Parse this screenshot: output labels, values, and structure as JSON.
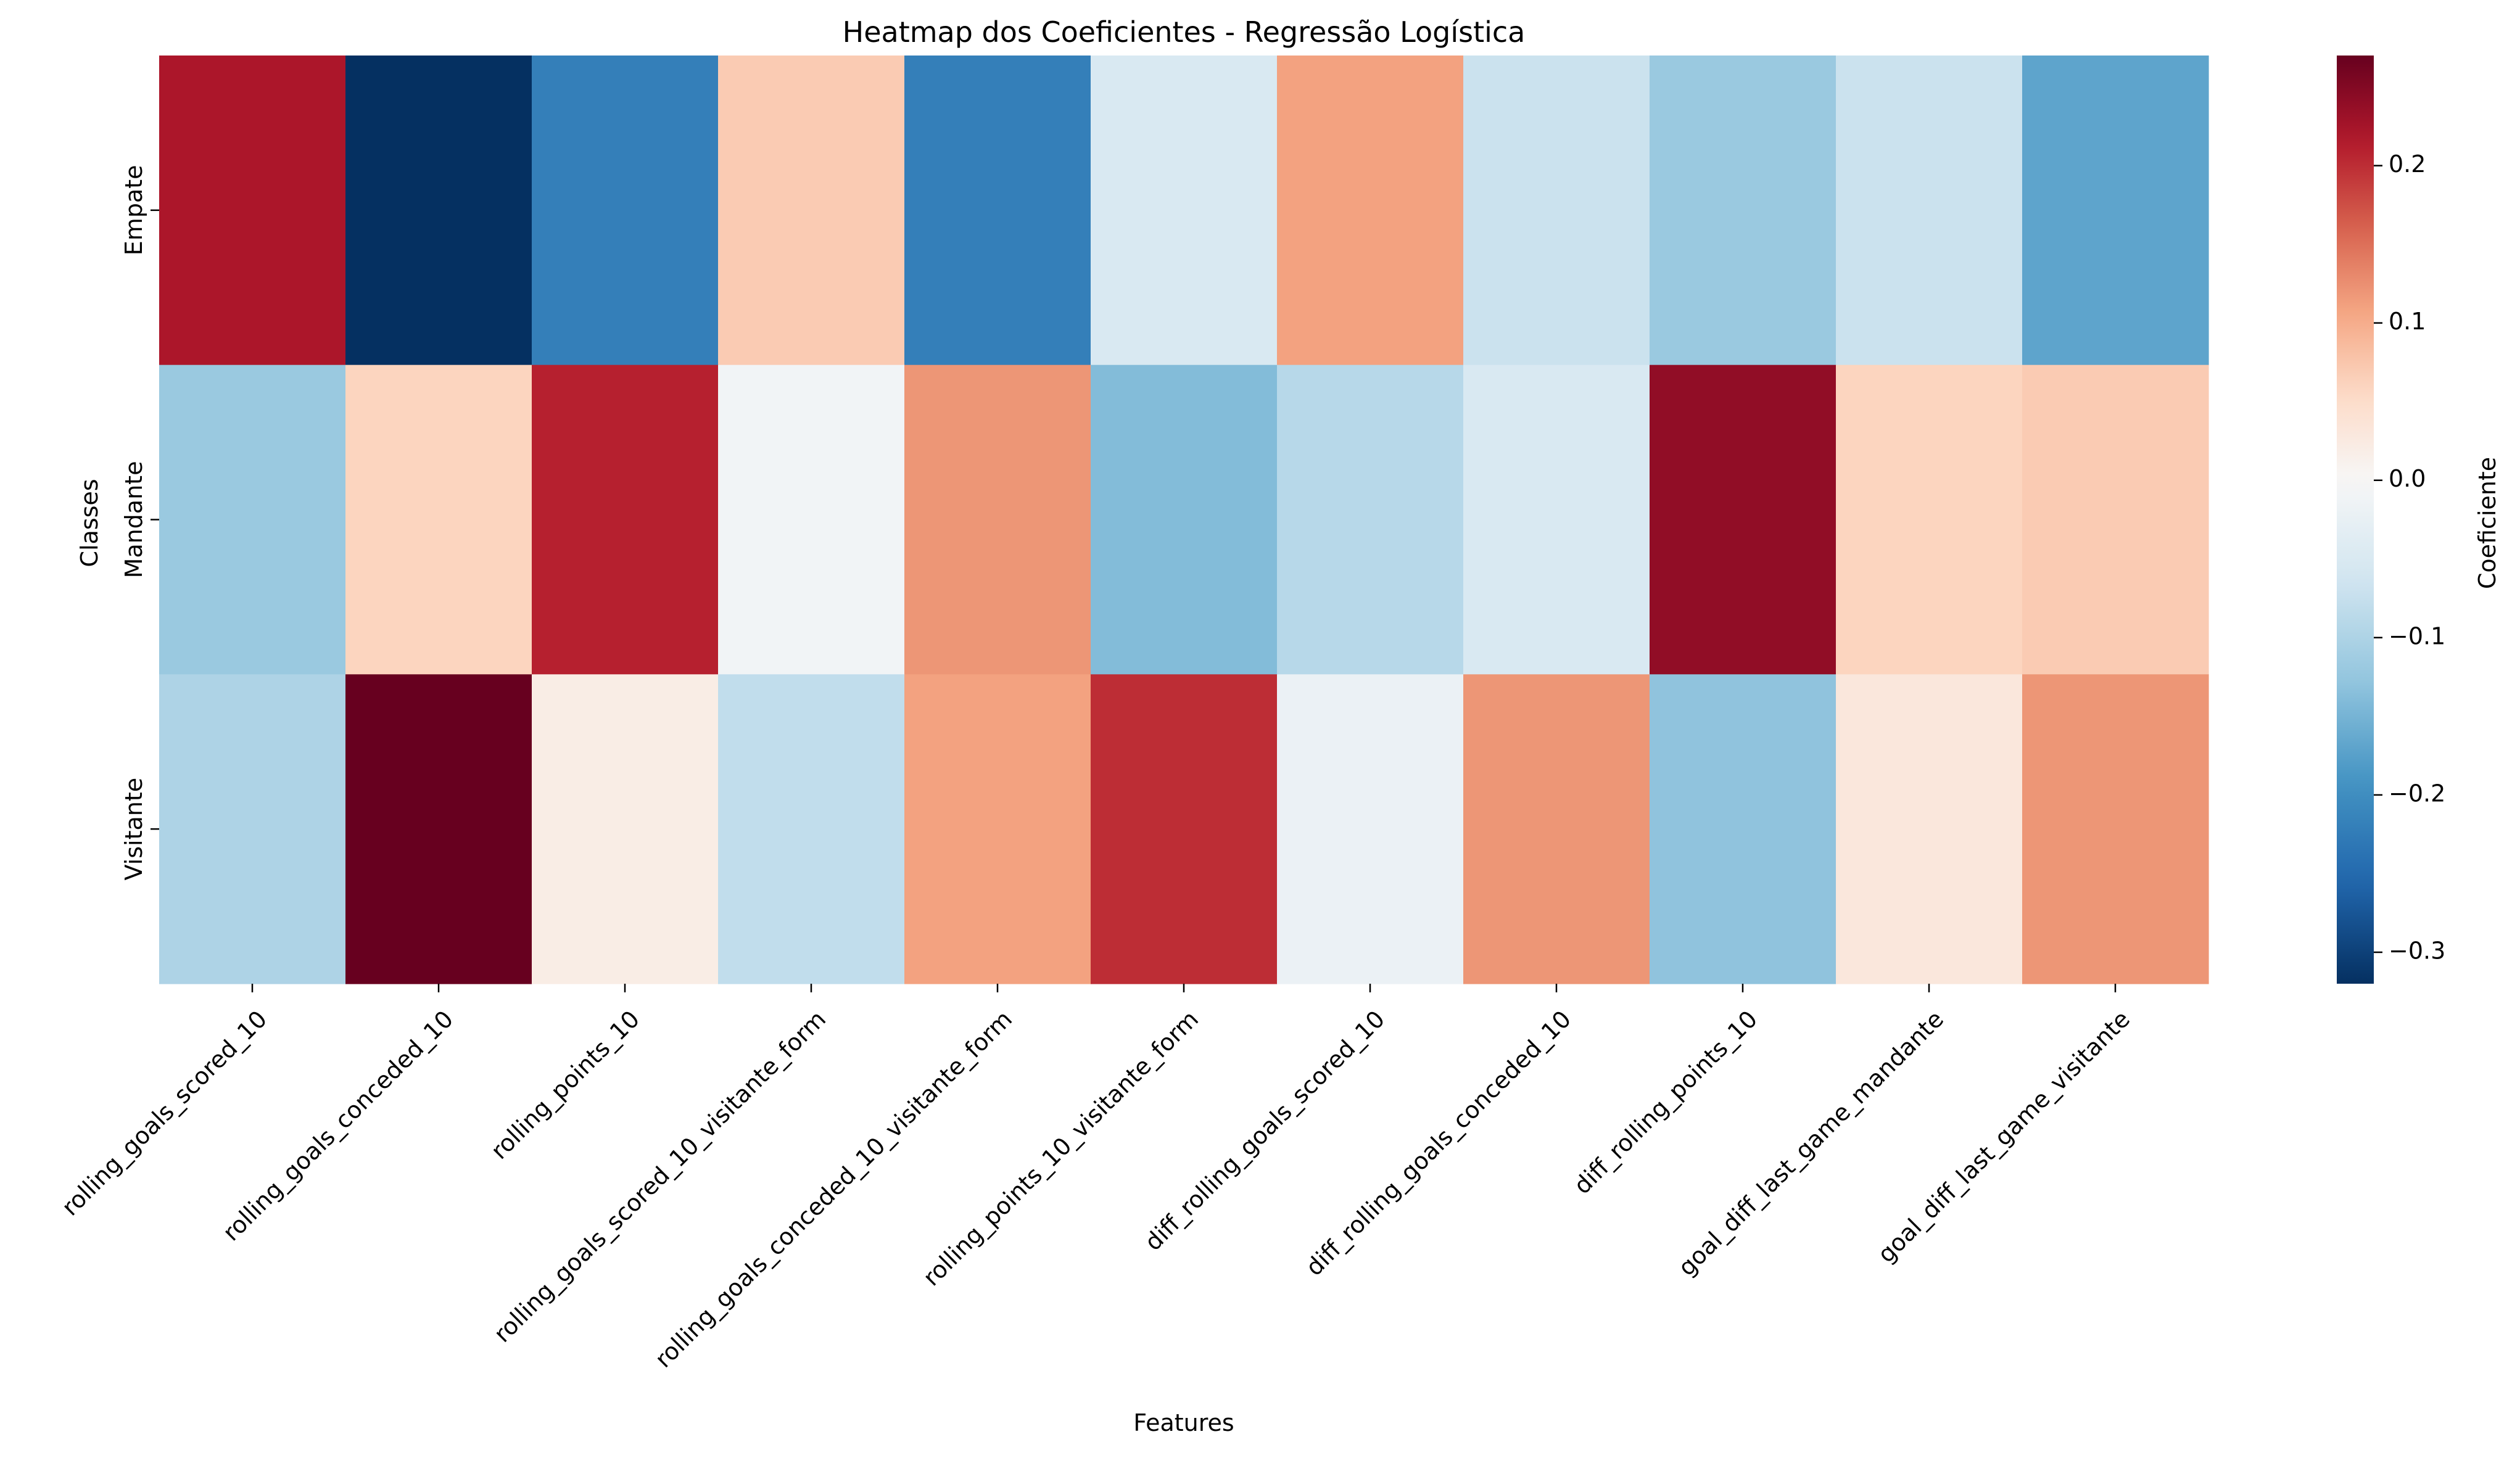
{
  "chart_data": {
    "type": "heatmap",
    "title": "Heatmap dos Coeficientes - Regressão Logística",
    "xlabel": "Features",
    "ylabel": "Classes",
    "x_categories": [
      "rolling_goals_scored_10",
      "rolling_goals_conceded_10",
      "rolling_points_10",
      "rolling_goals_scored_10_visitante_form",
      "rolling_goals_conceded_10_visitante_form",
      "rolling_points_10_visitante_form",
      "diff_rolling_goals_scored_10",
      "diff_rolling_goals_conceded_10",
      "diff_rolling_points_10",
      "goal_diff_last_game_mandante",
      "goal_diff_last_game_visitante"
    ],
    "y_categories": [
      "Empate",
      "Mandante",
      "Visitante"
    ],
    "values": [
      [
        0.22,
        -0.32,
        -0.22,
        0.07,
        -0.22,
        -0.05,
        0.11,
        -0.07,
        -0.12,
        -0.07,
        -0.17
      ],
      [
        -0.12,
        0.06,
        0.21,
        -0.01,
        0.12,
        -0.14,
        -0.09,
        -0.05,
        0.24,
        0.06,
        0.07
      ],
      [
        -0.1,
        0.27,
        0.02,
        -0.08,
        0.11,
        0.2,
        -0.02,
        0.12,
        -0.13,
        0.03,
        0.12
      ]
    ],
    "colorbar": {
      "label": "Coeficiente",
      "vmin": -0.32,
      "vmax": 0.27,
      "ticks": [
        -0.3,
        -0.2,
        -0.1,
        0.0,
        0.1,
        0.2
      ],
      "tick_labels": [
        "−0.3",
        "−0.2",
        "−0.1",
        "0.0",
        "0.1",
        "0.2"
      ],
      "colormap": "RdBu_r"
    }
  }
}
